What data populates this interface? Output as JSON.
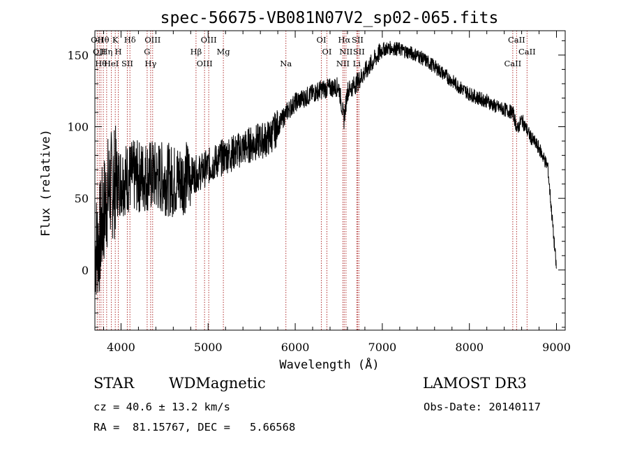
{
  "chart_data": {
    "type": "line",
    "title": "spec-56675-VB081N07V2_sp02-065.fits",
    "xlabel": "Wavelength (Å)",
    "ylabel": "Flux (relative)",
    "xlim": [
      3700,
      9100
    ],
    "ylim": [
      -42,
      167
    ],
    "xticks": [
      4000,
      5000,
      6000,
      7000,
      8000,
      9000
    ],
    "yticks": [
      0,
      50,
      100,
      150
    ],
    "grid": false,
    "series": [
      {
        "name": "flux",
        "color": "#000000",
        "x": [
          3700,
          3750,
          3800,
          3850,
          3900,
          3950,
          4000,
          4050,
          4100,
          4200,
          4300,
          4400,
          4500,
          4600,
          4700,
          4800,
          4900,
          5000,
          5100,
          5200,
          5300,
          5400,
          5500,
          5600,
          5700,
          5800,
          5900,
          6000,
          6100,
          6200,
          6300,
          6400,
          6500,
          6560,
          6600,
          6700,
          6800,
          6900,
          7000,
          7100,
          7200,
          7300,
          7400,
          7500,
          7600,
          7700,
          7800,
          7900,
          8000,
          8100,
          8200,
          8300,
          8400,
          8500,
          8550,
          8600,
          8700,
          8800,
          8900,
          9000
        ],
        "values": [
          15,
          20,
          40,
          55,
          60,
          62,
          63,
          64,
          65,
          65,
          66,
          65,
          64,
          62,
          64,
          66,
          68,
          72,
          76,
          80,
          82,
          85,
          88,
          90,
          92,
          100,
          110,
          117,
          120,
          123,
          126,
          127,
          128,
          105,
          125,
          130,
          138,
          146,
          154,
          155,
          154,
          152,
          150,
          146,
          142,
          137,
          132,
          127,
          123,
          120,
          118,
          114,
          112,
          110,
          98,
          105,
          93,
          85,
          72,
          0
        ]
      }
    ],
    "lines": [
      {
        "x": 3727,
        "label": "OII"
      },
      {
        "x": 3750,
        "label": "OII"
      },
      {
        "x": 3770,
        "label": "Hθ"
      },
      {
        "x": 3797,
        "label": "Hθ"
      },
      {
        "x": 3835,
        "label": "Hη"
      },
      {
        "x": 3889,
        "label": "HeI"
      },
      {
        "x": 3934,
        "label": "K"
      },
      {
        "x": 3969,
        "label": "H"
      },
      {
        "x": 4072,
        "label": "SII"
      },
      {
        "x": 4102,
        "label": "Hδ"
      },
      {
        "x": 4300,
        "label": "G"
      },
      {
        "x": 4340,
        "label": "Hγ"
      },
      {
        "x": 4363,
        "label": "OIII"
      },
      {
        "x": 4861,
        "label": "Hβ"
      },
      {
        "x": 4959,
        "label": "OIII"
      },
      {
        "x": 5007,
        "label": "OIII"
      },
      {
        "x": 5175,
        "label": "Mg"
      },
      {
        "x": 5893,
        "label": "Na"
      },
      {
        "x": 6300,
        "label": "OI"
      },
      {
        "x": 6364,
        "label": "OI"
      },
      {
        "x": 6548,
        "label": "NII"
      },
      {
        "x": 6563,
        "label": "Hα"
      },
      {
        "x": 6583,
        "label": "NII"
      },
      {
        "x": 6707,
        "label": "Li"
      },
      {
        "x": 6716,
        "label": "SII"
      },
      {
        "x": 6731,
        "label": "SII"
      },
      {
        "x": 8498,
        "label": "CaII"
      },
      {
        "x": 8542,
        "label": "CaII"
      },
      {
        "x": 8662,
        "label": "CaII"
      }
    ]
  },
  "info": {
    "class_label": "STAR",
    "subclass": "WDMagnetic",
    "survey": "LAMOST DR3",
    "cz": "cz = 40.6 ± 13.2 km/s",
    "obs_date": "Obs-Date: 20140117",
    "coords": "RA =  81.15767, DEC =   5.66568"
  }
}
